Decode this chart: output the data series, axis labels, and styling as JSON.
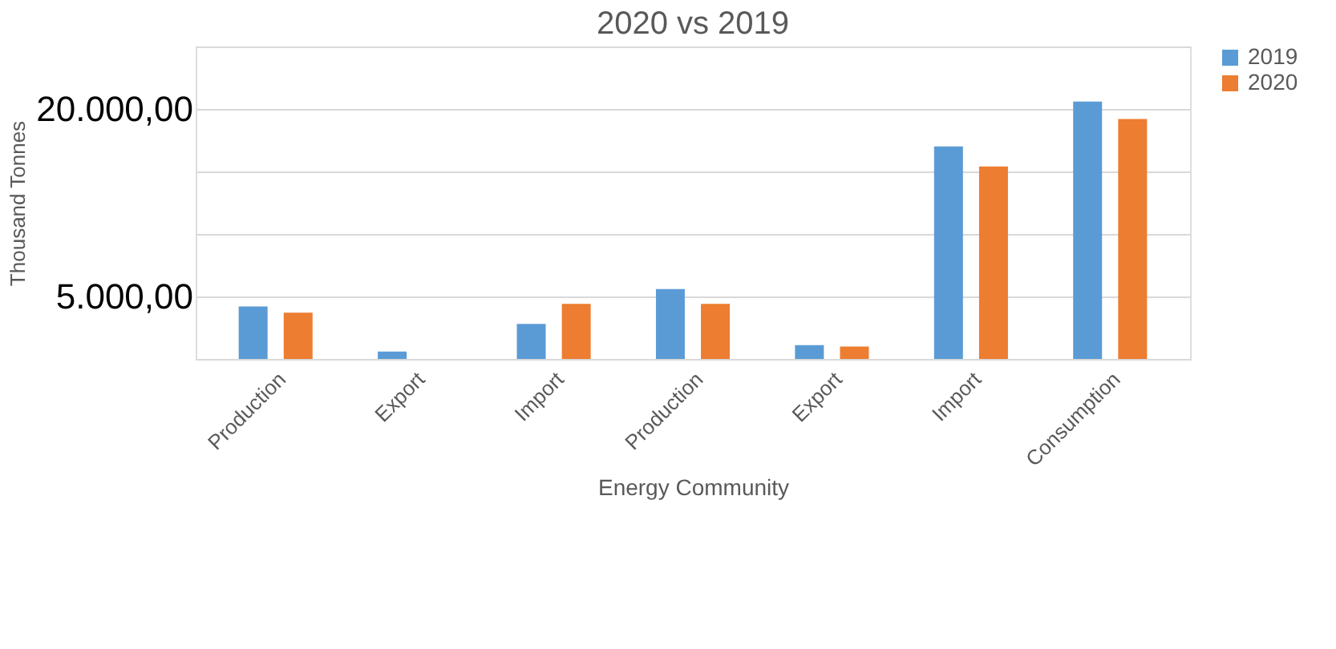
{
  "chart_data": {
    "type": "bar",
    "title": "2020 vs 2019",
    "xlabel": "Energy Community",
    "ylabel": "Thousand Tonnes",
    "categories": [
      "Production",
      "Export",
      "Import",
      "Production",
      "Export",
      "Import",
      "Consumption"
    ],
    "series": [
      {
        "name": "2019",
        "color": "#5b9bd5",
        "values": [
          4200,
          600,
          2800,
          5600,
          1100,
          17000,
          20600
        ]
      },
      {
        "name": "2020",
        "color": "#ed7d31",
        "values": [
          3700,
          null,
          4400,
          4400,
          1000,
          15400,
          19200
        ]
      }
    ],
    "ylim": [
      0,
      25000
    ],
    "yticks": [
      {
        "value": 0,
        "label": null
      },
      {
        "value": 5000,
        "label": "5.000,00"
      },
      {
        "value": 10000,
        "label": null
      },
      {
        "value": 15000,
        "label": null
      },
      {
        "value": 20000,
        "label": "20.000,00"
      },
      {
        "value": 25000,
        "label": null
      }
    ],
    "grid": "y",
    "legend": "right"
  }
}
